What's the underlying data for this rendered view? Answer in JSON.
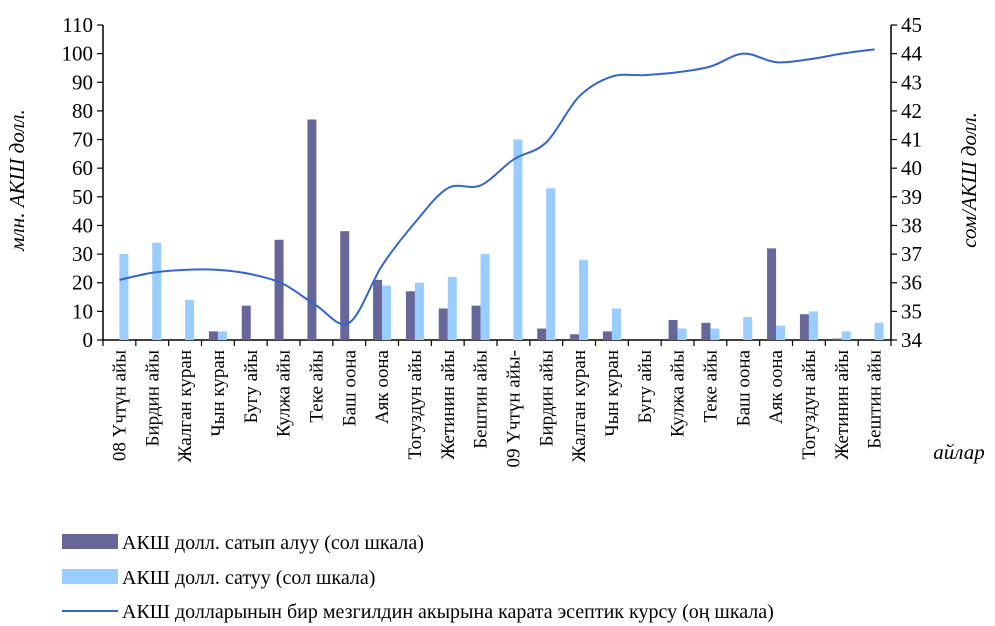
{
  "chart_data": {
    "type": "bar",
    "xlabel": "айлар",
    "ylabel_left": "млн. АКШ долл.",
    "ylabel_right": "сом/АКШ долл.",
    "ylim_left": [
      0,
      110
    ],
    "ylim_right": [
      34,
      45
    ],
    "yticks_left": [
      "0",
      "10",
      "20",
      "30",
      "40",
      "50",
      "60",
      "70",
      "80",
      "90",
      "100",
      "110"
    ],
    "yticks_right": [
      "34",
      "35",
      "36",
      "37",
      "38",
      "39",
      "40",
      "41",
      "42",
      "43",
      "44",
      "45"
    ],
    "categories": [
      "08 Үчтүн айы",
      "Бирдин айы",
      "Жалган куран",
      "Чын куран",
      "Бугу айы",
      "Кулжа айы",
      "Теке айы",
      "Баш оона",
      "Аяк оона",
      "Тогуздун айы",
      "Жетинин айы",
      "Бештин айы",
      "09 Үчтүн айы-",
      "Бирдин айы",
      "Жалган куран",
      "Чын куран",
      "Бугу айы",
      "Кулжа айы",
      "Теке айы",
      "Баш оона",
      "Аяк оона",
      "Тогуздун айы",
      "Жетинин айы",
      "Бештин айы"
    ],
    "series": [
      {
        "name": "АКШ долл. сатып алуу (сол шкала)",
        "kind": "bar",
        "axis": "left",
        "color": "#666699",
        "values": [
          0,
          0,
          0,
          3,
          12,
          35,
          77,
          38,
          21,
          17,
          11,
          12,
          0,
          4,
          2,
          3,
          0,
          7,
          6,
          0,
          32,
          9,
          0.5,
          0
        ]
      },
      {
        "name": "АКШ долл. сатуу (сол шкала)",
        "kind": "bar",
        "axis": "left",
        "color": "#99CCFF",
        "values": [
          30,
          34,
          14,
          3,
          0,
          0,
          0,
          0,
          19,
          20,
          22,
          30,
          70,
          53,
          28,
          11,
          0,
          4,
          4,
          8,
          5,
          10,
          3,
          6
        ]
      },
      {
        "name": "АКШ долларынын бир мезгилдин акырына карата эсептик курсу (оң шкала)",
        "kind": "line",
        "axis": "right",
        "color": "#3366CC",
        "values": [
          36.1,
          36.35,
          36.45,
          36.45,
          36.3,
          35.95,
          35.2,
          34.6,
          36.6,
          38.1,
          39.3,
          39.4,
          40.3,
          40.9,
          42.5,
          43.2,
          43.25,
          43.35,
          43.55,
          44.0,
          43.7,
          43.8,
          44.0,
          44.15
        ]
      }
    ]
  }
}
